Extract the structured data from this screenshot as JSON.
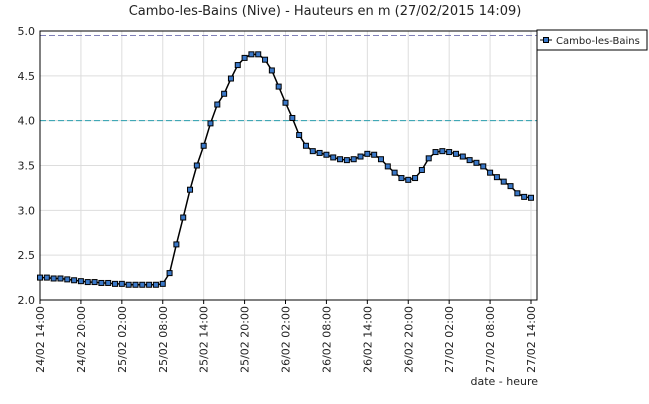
{
  "chart_data": {
    "type": "line",
    "title": "Cambo-les-Bains (Nive) - Hauteurs en m (27/02/2015 14:09)",
    "x_label": "date - heure",
    "categories": [
      "24/02 14:00",
      null,
      null,
      null,
      null,
      null,
      "24/02 20:00",
      null,
      null,
      null,
      null,
      null,
      "25/02 02:00",
      null,
      null,
      null,
      null,
      null,
      "25/02 08:00",
      null,
      null,
      null,
      null,
      null,
      "25/02 14:00",
      null,
      null,
      null,
      null,
      null,
      "25/02 20:00",
      null,
      null,
      null,
      null,
      null,
      "26/02 02:00",
      null,
      null,
      null,
      null,
      null,
      "26/02 08:00",
      null,
      null,
      null,
      null,
      null,
      "26/02 14:00",
      null,
      null,
      null,
      null,
      null,
      "26/02 20:00",
      null,
      null,
      null,
      null,
      null,
      "27/02 02:00",
      null,
      null,
      null,
      null,
      null,
      "27/02 08:00",
      null,
      null,
      null,
      null,
      null,
      "27/02 14:00"
    ],
    "series": [
      {
        "name": "Cambo-les-Bains",
        "color": "#3a78c8",
        "values": [
          2.25,
          2.25,
          2.24,
          2.24,
          2.23,
          2.22,
          2.21,
          2.2,
          2.2,
          2.19,
          2.19,
          2.18,
          2.18,
          2.17,
          2.17,
          2.17,
          2.17,
          2.17,
          2.18,
          2.3,
          2.62,
          2.92,
          3.23,
          3.5,
          3.72,
          3.97,
          4.18,
          4.3,
          4.47,
          4.62,
          4.7,
          4.74,
          4.74,
          4.68,
          4.56,
          4.38,
          4.2,
          4.03,
          3.84,
          3.72,
          3.66,
          3.64,
          3.62,
          3.59,
          3.57,
          3.56,
          3.57,
          3.6,
          3.63,
          3.62,
          3.57,
          3.49,
          3.42,
          3.36,
          3.34,
          3.36,
          3.45,
          3.58,
          3.65,
          3.66,
          3.65,
          3.63,
          3.6,
          3.56,
          3.53,
          3.49,
          3.42,
          3.37,
          3.32,
          3.27,
          3.19,
          3.15,
          3.14
        ]
      }
    ],
    "reference_lines": [
      {
        "value": 4.95,
        "color": "#8080b8"
      },
      {
        "value": 4.0,
        "color": "#2aa0b0"
      }
    ],
    "ylim": [
      2.0,
      5.0
    ],
    "yticks": [
      {
        "value": 2.0,
        "label": "2.0"
      },
      2.5,
      {
        "value": 3.0,
        "label": "3.0"
      },
      3.5,
      {
        "value": 4.0,
        "label": "4.0"
      },
      4.5,
      {
        "value": 5.0,
        "label": "5.0"
      }
    ],
    "grid": true,
    "legend": "top-right"
  }
}
